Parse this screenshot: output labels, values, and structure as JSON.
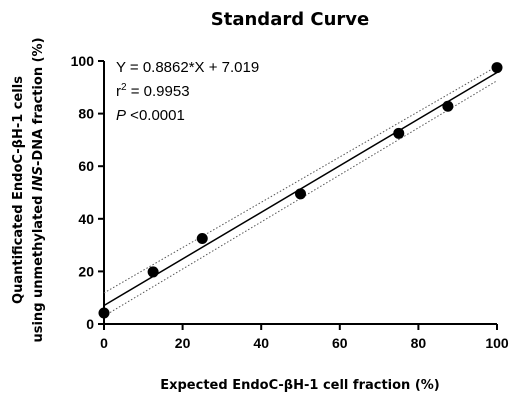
{
  "chart_data": {
    "type": "scatter",
    "title": "Standard Curve",
    "xlabel": "Expected EndoC-βH-1 cell fraction (%)",
    "ylabel_line1": "Quantificated EndoC-βH-1 cells",
    "ylabel_line2_pre": "using unmethylated ",
    "ylabel_line2_italic": "INS",
    "ylabel_line2_post": "-DNA fraction (%)",
    "xlim": [
      0,
      100
    ],
    "ylim": [
      0,
      100
    ],
    "x_ticks": [
      0,
      20,
      40,
      60,
      80,
      100
    ],
    "y_ticks": [
      0,
      20,
      40,
      60,
      80,
      100
    ],
    "points": [
      {
        "x": 0,
        "y": 4.2
      },
      {
        "x": 12.5,
        "y": 19.8
      },
      {
        "x": 25,
        "y": 32.5
      },
      {
        "x": 50,
        "y": 49.5
      },
      {
        "x": 75,
        "y": 72.5
      },
      {
        "x": 87.5,
        "y": 82.8
      },
      {
        "x": 100,
        "y": 97.5
      }
    ],
    "fit": {
      "slope": 0.8862,
      "intercept": 7.019
    },
    "ci_lower": {
      "y_at_0": 3.0,
      "y_at_100": 92.5
    },
    "ci_upper": {
      "y_at_0": 11.8,
      "y_at_100": 98.0
    },
    "grid": false,
    "annotations": {
      "equation": "Y = 0.8862*X + 7.019",
      "r2_prefix": "r",
      "r2_sup": "2",
      "r2_value": " = 0.9953",
      "p_label": "P",
      "p_value": " <0.0001"
    }
  }
}
